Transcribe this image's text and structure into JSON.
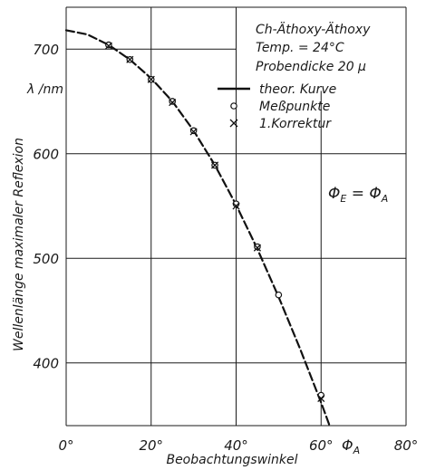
{
  "chart_data": {
    "type": "scatter",
    "x_axis": {
      "title": "Beobachtungswinkel",
      "range": [
        0,
        80
      ],
      "ticks": [
        0,
        20,
        40,
        60,
        80
      ],
      "tick_labels": [
        "0°",
        "20°",
        "40°",
        "60°",
        "80°"
      ],
      "symbol": "Φ",
      "symbol_sub": "A"
    },
    "y_axis": {
      "title": "Wellenlänge maximaler Reflexion",
      "unit_label": "λ /nm",
      "range": [
        340,
        740
      ],
      "ticks": [
        400,
        500,
        600,
        700
      ],
      "tick_labels": [
        "400",
        "500",
        "600",
        "700"
      ]
    },
    "grid": true,
    "legend": {
      "position": "top-right",
      "header": [
        "Ch-Äthoxy-Äthoxy",
        "Temp. = 24°C",
        "Probendicke 20 μ"
      ],
      "entries": [
        {
          "marker": "line",
          "label": "theor. Kurve"
        },
        {
          "marker": "circle",
          "label": "Meßpunkte"
        },
        {
          "marker": "cross",
          "label": "1.Korrektur"
        }
      ]
    },
    "annotation": {
      "main": "Φ",
      "sub1": "E",
      "eq": " = ",
      "main2": "Φ",
      "sub2": "A"
    },
    "series": [
      {
        "name": "theor. Kurve",
        "kind": "line",
        "x": [
          0,
          5,
          10,
          15,
          20,
          25,
          30,
          35,
          40,
          45,
          50,
          55,
          60,
          62
        ],
        "y": [
          718,
          714,
          704,
          690,
          672,
          650,
          622,
          589,
          551,
          509,
          463,
          414,
          362,
          340
        ]
      },
      {
        "name": "Meßpunkte",
        "kind": "circle",
        "x": [
          10,
          15,
          20,
          25,
          30,
          35,
          40,
          45,
          50,
          60
        ],
        "y": [
          704,
          690,
          671,
          650,
          622,
          589,
          552,
          511,
          465,
          369
        ]
      },
      {
        "name": "1.Korrektur",
        "kind": "cross",
        "x": [
          10,
          15,
          20,
          25,
          30,
          35,
          40,
          45,
          60
        ],
        "y": [
          703,
          690,
          671,
          649,
          621,
          589,
          550,
          510,
          366
        ]
      }
    ]
  }
}
